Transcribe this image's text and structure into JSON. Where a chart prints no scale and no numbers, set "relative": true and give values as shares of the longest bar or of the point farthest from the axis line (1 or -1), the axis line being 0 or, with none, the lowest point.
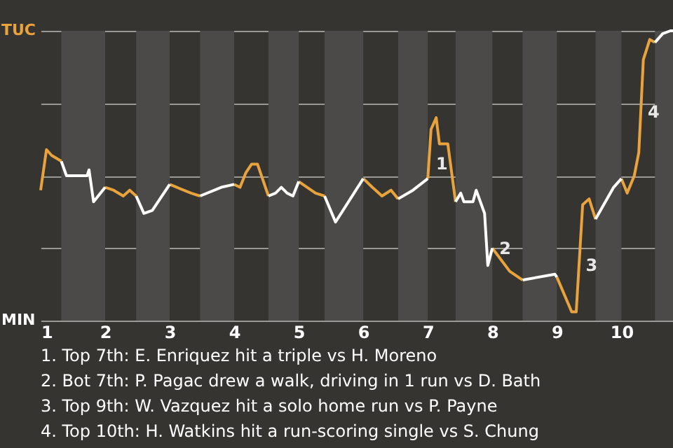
{
  "chart_data": {
    "type": "line",
    "relative": true,
    "x": [
      1,
      1.09,
      1.17,
      1.32,
      1.4,
      1.72,
      1.75,
      1.82,
      2,
      2.13,
      2.28,
      2.38,
      2.48,
      2.6,
      2.73,
      2.88,
      3,
      3.33,
      3.47,
      3.8,
      4,
      4.09,
      4.18,
      4.27,
      4.36,
      4.53,
      4.64,
      4.73,
      4.82,
      4.91,
      5,
      5.26,
      5.4,
      5.57,
      6,
      6.14,
      6.29,
      6.43,
      6.54,
      6.77,
      7,
      7.05,
      7.13,
      7.18,
      7.31,
      7.43,
      7.51,
      7.56,
      7.7,
      7.75,
      7.88,
      7.93,
      8,
      8.27,
      8.47,
      8.97,
      9,
      9.23,
      9.3,
      9.4,
      9.5,
      9.6,
      9.88,
      10,
      10.09,
      10.2,
      10.27,
      10.34,
      10.44,
      10.52,
      10.64,
      10.76,
      10.8
    ],
    "series": [
      {
        "color": "#e8a33d",
        "values": [
          0.45,
          0.59,
          0.57,
          0.55,
          null,
          null,
          null,
          null,
          0.46,
          0.45,
          0.43,
          0.45,
          0.43,
          null,
          null,
          null,
          0.47,
          0.44,
          0.43,
          null,
          0.47,
          0.46,
          0.51,
          0.54,
          0.54,
          0.43,
          null,
          null,
          null,
          null,
          0.48,
          0.44,
          0.43,
          null,
          0.49,
          0.46,
          0.43,
          0.45,
          0.42,
          null,
          0.49,
          0.66,
          0.7,
          0.61,
          0.61,
          0.41,
          null,
          null,
          null,
          null,
          null,
          null,
          0.25,
          0.17,
          0.14,
          null,
          0.15,
          0.03,
          0.03,
          0.4,
          0.42,
          0.35,
          null,
          0.49,
          0.44,
          0.5,
          0.58,
          0.9,
          0.97,
          0.96,
          null,
          null,
          null
        ]
      },
      {
        "color": "#ffffff",
        "values": [
          null,
          null,
          null,
          0.55,
          0.5,
          0.5,
          0.52,
          0.41,
          0.46,
          null,
          null,
          null,
          0.43,
          0.37,
          0.38,
          0.43,
          0.47,
          null,
          0.43,
          0.46,
          0.47,
          null,
          null,
          null,
          null,
          0.43,
          0.44,
          0.46,
          0.44,
          0.43,
          0.48,
          null,
          0.43,
          0.34,
          0.49,
          null,
          null,
          null,
          0.42,
          0.45,
          0.49,
          null,
          null,
          null,
          null,
          0.41,
          0.44,
          0.41,
          0.41,
          0.45,
          0.37,
          0.19,
          0.25,
          null,
          0.14,
          0.16,
          0.15,
          null,
          null,
          null,
          null,
          0.35,
          0.46,
          0.49,
          null,
          null,
          null,
          null,
          null,
          0.96,
          0.99,
          1.0,
          1.0
        ]
      }
    ],
    "xlim": [
      1,
      10.8
    ],
    "xticks": [
      1,
      2,
      3,
      4,
      5,
      6,
      7,
      8,
      9,
      10
    ],
    "grid": "y",
    "marker": "none",
    "line_style": "solid",
    "bands": [
      {
        "axis": "x",
        "from": 1.32,
        "to": 2,
        "color": "#4b4a48"
      },
      {
        "axis": "x",
        "from": 2.48,
        "to": 3,
        "color": "#4b4a48"
      },
      {
        "axis": "x",
        "from": 3.47,
        "to": 4,
        "color": "#4b4a48"
      },
      {
        "axis": "x",
        "from": 4.53,
        "to": 5,
        "color": "#4b4a48"
      },
      {
        "axis": "x",
        "from": 5.4,
        "to": 6,
        "color": "#4b4a48"
      },
      {
        "axis": "x",
        "from": 6.54,
        "to": 7,
        "color": "#4b4a48"
      },
      {
        "axis": "x",
        "from": 7.43,
        "to": 8,
        "color": "#4b4a48"
      },
      {
        "axis": "x",
        "from": 8.47,
        "to": 9,
        "color": "#4b4a48"
      },
      {
        "axis": "x",
        "from": 9.6,
        "to": 10,
        "color": "#4b4a48"
      },
      {
        "axis": "x",
        "from": 10.52,
        "to": 10.8,
        "color": "#4b4a48"
      }
    ],
    "annotations": [
      "TUC",
      "MIN",
      {
        "text": "1",
        "x": 7.02,
        "y": 0.54
      },
      {
        "text": "2",
        "x": 8,
        "y": 0.25
      },
      {
        "text": "3",
        "x": 9.34,
        "y": 0.19
      },
      {
        "text": "4",
        "x": 10.3,
        "y": 0.72
      },
      "1. Top 7th: E. Enriquez hit a triple vs H. Moreno",
      "2. Bot 7th: P. Pagac drew a walk, driving in 1 run vs D. Bath",
      "3. Top 9th: W. Vazquez hit a solo home run vs P. Payne",
      "4. Top 10th: H. Watkins hit a run-scoring single vs S. Chung"
    ]
  }
}
